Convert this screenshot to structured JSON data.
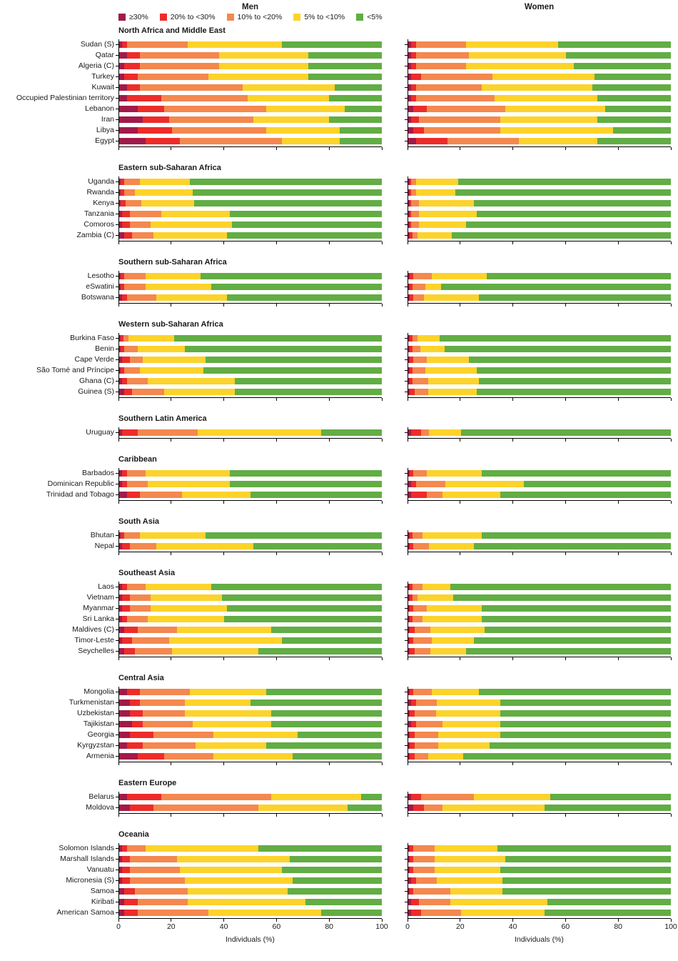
{
  "chart_data": {
    "type": "bar",
    "subtype": "stacked_100_horizontal",
    "column_headers": [
      "Men",
      "Women"
    ],
    "legend": [
      {
        "label": "≥30%",
        "color": "#a11a4a"
      },
      {
        "label": "20% to <30%",
        "color": "#ed2c2a"
      },
      {
        "label": "10% to <20%",
        "color": "#f4884f"
      },
      {
        "label": "5% to <10%",
        "color": "#fcd32b"
      },
      {
        "label": "<5%",
        "color": "#62ad44"
      }
    ],
    "xlabel": "Individuals (%)",
    "x_ticks": [
      0,
      20,
      40,
      60,
      80,
      100
    ],
    "xlim": [
      0,
      100
    ],
    "grid": false,
    "legend_position": "top-left",
    "regions": [
      {
        "name": "North Africa and Middle East",
        "countries": [
          {
            "name": "Sudan (S)",
            "men": [
              1,
              2,
              23,
              36,
              38
            ],
            "women": [
              1,
              2,
              19,
              35,
              43
            ]
          },
          {
            "name": "Qatar",
            "men": [
              3,
              5,
              30,
              34,
              28
            ],
            "women": [
              1,
              2,
              20,
              37,
              40
            ]
          },
          {
            "name": "Algeria (C)",
            "men": [
              2,
              6,
              30,
              34,
              28
            ],
            "women": [
              1,
              2,
              19,
              41,
              37
            ]
          },
          {
            "name": "Turkey",
            "men": [
              2,
              5,
              27,
              38,
              28
            ],
            "women": [
              1,
              4,
              27,
              39,
              29
            ]
          },
          {
            "name": "Kuwait",
            "men": [
              3,
              5,
              39,
              35,
              18
            ],
            "women": [
              1,
              2,
              25,
              42,
              30
            ]
          },
          {
            "name": "Occupied Palestinian territory",
            "men": [
              3,
              13,
              33,
              31,
              20
            ],
            "women": [
              1,
              2,
              30,
              39,
              28
            ]
          },
          {
            "name": "Lebanon",
            "men": [
              7,
              10,
              39,
              30,
              14
            ],
            "women": [
              2,
              5,
              30,
              38,
              25
            ]
          },
          {
            "name": "Iran",
            "men": [
              9,
              10,
              32,
              29,
              20
            ],
            "women": [
              1,
              3,
              31,
              37,
              28
            ]
          },
          {
            "name": "Libya",
            "men": [
              7,
              13,
              36,
              28,
              16
            ],
            "women": [
              2,
              4,
              29,
              43,
              22
            ]
          },
          {
            "name": "Egypt",
            "men": [
              10,
              13,
              39,
              22,
              16
            ],
            "women": [
              3,
              12,
              27,
              30,
              28
            ]
          }
        ]
      },
      {
        "name": "Eastern sub-Saharan Africa",
        "countries": [
          {
            "name": "Uganda",
            "men": [
              0.5,
              1.5,
              6,
              19,
              73
            ],
            "women": [
              0.5,
              0.5,
              2,
              16,
              81
            ]
          },
          {
            "name": "Rwanda",
            "men": [
              0.5,
              1.5,
              4,
              22,
              72
            ],
            "women": [
              0.5,
              0.5,
              2,
              15,
              82
            ]
          },
          {
            "name": "Kenya",
            "men": [
              0.5,
              2,
              6,
              20,
              71.5
            ],
            "women": [
              0.5,
              0.5,
              3,
              21,
              75
            ]
          },
          {
            "name": "Tanzania",
            "men": [
              1,
              3,
              12,
              26,
              58
            ],
            "women": [
              0.5,
              0.5,
              3,
              22,
              74
            ]
          },
          {
            "name": "Comoros",
            "men": [
              1,
              3,
              8,
              31,
              57
            ],
            "women": [
              0.5,
              0.5,
              3,
              18,
              78
            ]
          },
          {
            "name": "Zambia (C)",
            "men": [
              2,
              3,
              8,
              28,
              59
            ],
            "women": [
              0.5,
              1,
              2,
              13,
              83.5
            ]
          }
        ]
      },
      {
        "name": "Southern sub-Saharan Africa",
        "countries": [
          {
            "name": "Lesotho",
            "men": [
              0.5,
              1.5,
              8,
              21,
              69
            ],
            "women": [
              0.5,
              1.5,
              7,
              21,
              70
            ]
          },
          {
            "name": "eSwatini",
            "men": [
              0.5,
              1.5,
              8,
              25,
              65
            ],
            "women": [
              0.5,
              1,
              5,
              6,
              87.5
            ]
          },
          {
            "name": "Botswana",
            "men": [
              1,
              2,
              11,
              27,
              59
            ],
            "women": [
              0.5,
              1.5,
              4,
              21,
              73
            ]
          }
        ]
      },
      {
        "name": "Western sub-Saharan Africa",
        "countries": [
          {
            "name": "Burkina Faso",
            "men": [
              0.5,
              1,
              2,
              17.5,
              79
            ],
            "women": [
              0.5,
              1,
              2,
              8.5,
              88
            ]
          },
          {
            "name": "Benin",
            "men": [
              0.5,
              1.5,
              5,
              18,
              75
            ],
            "women": [
              0.5,
              1,
              3,
              9.5,
              86
            ]
          },
          {
            "name": "Cape Verde",
            "men": [
              1,
              3,
              5,
              24,
              67
            ],
            "women": [
              0.5,
              1.5,
              5,
              16,
              77
            ]
          },
          {
            "name": "São Tomé and Príncipe",
            "men": [
              0.5,
              1.5,
              6,
              24,
              68
            ],
            "women": [
              0.5,
              1,
              5,
              19.5,
              74
            ]
          },
          {
            "name": "Ghana (C)",
            "men": [
              1,
              2,
              8,
              33,
              56
            ],
            "women": [
              0.5,
              1,
              6,
              19.5,
              73
            ]
          },
          {
            "name": "Guinea (S)",
            "men": [
              2,
              3,
              12,
              27,
              56
            ],
            "women": [
              0.5,
              2,
              5,
              18.5,
              74
            ]
          }
        ]
      },
      {
        "name": "Southern Latin America",
        "countries": [
          {
            "name": "Uruguay",
            "men": [
              1,
              6,
              23,
              47,
              23
            ],
            "women": [
              1,
              4,
              3,
              12,
              80
            ]
          }
        ]
      },
      {
        "name": "Caribbean",
        "countries": [
          {
            "name": "Barbados",
            "men": [
              1,
              2,
              7,
              32,
              58
            ],
            "women": [
              0.5,
              1.5,
              5,
              21,
              72
            ]
          },
          {
            "name": "Dominican Republic",
            "men": [
              1,
              2,
              8,
              31,
              58
            ],
            "women": [
              1,
              2,
              11,
              30,
              56
            ]
          },
          {
            "name": "Trinidad and Tobago",
            "men": [
              3,
              5,
              16,
              26,
              50
            ],
            "women": [
              1,
              6,
              6,
              22,
              65
            ]
          }
        ]
      },
      {
        "name": "South Asia",
        "countries": [
          {
            "name": "Bhutan",
            "men": [
              0.5,
              1.5,
              6,
              25,
              67
            ],
            "women": [
              0.5,
              1,
              4,
              22.5,
              72
            ]
          },
          {
            "name": "Nepal",
            "men": [
              1,
              3,
              10,
              37,
              49
            ],
            "women": [
              0.5,
              1.5,
              6,
              17,
              75
            ]
          }
        ]
      },
      {
        "name": "Southeast Asia",
        "countries": [
          {
            "name": "Laos",
            "men": [
              1,
              2,
              7,
              25,
              65
            ],
            "women": [
              0.5,
              1,
              4,
              10.5,
              84
            ]
          },
          {
            "name": "Vietnam",
            "men": [
              1,
              3,
              8,
              27,
              61
            ],
            "women": [
              0.5,
              1,
              2,
              13.5,
              83
            ]
          },
          {
            "name": "Myanmar",
            "men": [
              1,
              3,
              8,
              29,
              59
            ],
            "women": [
              0.5,
              1.5,
              5,
              21,
              72
            ]
          },
          {
            "name": "Sri Lanka",
            "men": [
              1,
              2,
              8,
              29,
              60
            ],
            "women": [
              0.5,
              1,
              4,
              22.5,
              72
            ]
          },
          {
            "name": "Maldives (C)",
            "men": [
              2,
              5,
              15,
              36,
              42
            ],
            "women": [
              0.5,
              2,
              6,
              20.5,
              71
            ]
          },
          {
            "name": "Timor-Leste",
            "men": [
              1,
              4,
              14,
              43,
              38
            ],
            "women": [
              0.5,
              1.5,
              7,
              16,
              75
            ]
          },
          {
            "name": "Seychelles",
            "men": [
              2,
              4,
              14,
              33,
              47
            ],
            "women": [
              0.5,
              2,
              6,
              13.5,
              78
            ]
          }
        ]
      },
      {
        "name": "Central Asia",
        "countries": [
          {
            "name": "Mongolia",
            "men": [
              3,
              5,
              19,
              29,
              44
            ],
            "women": [
              0.5,
              1.5,
              7,
              18,
              73
            ]
          },
          {
            "name": "Turkmenistan",
            "men": [
              4,
              4,
              17,
              25,
              50
            ],
            "women": [
              1,
              2,
              8,
              24,
              65
            ]
          },
          {
            "name": "Uzbekistan",
            "men": [
              4,
              5,
              16,
              33,
              42
            ],
            "women": [
              0.5,
              2,
              8,
              24.5,
              65
            ]
          },
          {
            "name": "Tajikistan",
            "men": [
              5,
              4,
              19,
              30,
              42
            ],
            "women": [
              1,
              2,
              10,
              22,
              65
            ]
          },
          {
            "name": "Georgia",
            "men": [
              4,
              9,
              23,
              32,
              32
            ],
            "women": [
              0.5,
              2,
              9,
              23.5,
              65
            ]
          },
          {
            "name": "Kyrgyzstan",
            "men": [
              3,
              6,
              20,
              27,
              44
            ],
            "women": [
              0.5,
              2,
              9,
              19.5,
              69
            ]
          },
          {
            "name": "Armenia",
            "men": [
              7,
              10,
              19,
              30,
              34
            ],
            "women": [
              0.5,
              2,
              5,
              13.5,
              79
            ]
          }
        ]
      },
      {
        "name": "Eastern Europe",
        "countries": [
          {
            "name": "Belarus",
            "men": [
              3,
              13,
              42,
              34,
              8
            ],
            "women": [
              1,
              4,
              20,
              29,
              46
            ]
          },
          {
            "name": "Moldova",
            "men": [
              4,
              9,
              40,
              34,
              13
            ],
            "women": [
              2,
              4,
              7,
              39,
              48
            ]
          }
        ]
      },
      {
        "name": "Oceania",
        "countries": [
          {
            "name": "Solomon Islands",
            "men": [
              1,
              2,
              7,
              43,
              47
            ],
            "women": [
              0.5,
              1.5,
              8,
              24,
              66
            ]
          },
          {
            "name": "Marshall Islands",
            "men": [
              1,
              3,
              18,
              43,
              35
            ],
            "women": [
              0.5,
              1.5,
              8,
              27,
              63
            ]
          },
          {
            "name": "Vanuatu",
            "men": [
              1,
              3,
              19,
              39,
              38
            ],
            "women": [
              0.5,
              1.5,
              8,
              25,
              65
            ]
          },
          {
            "name": "Micronesia (S)",
            "men": [
              1,
              3,
              21,
              41,
              34
            ],
            "women": [
              1,
              2,
              8,
              25,
              64
            ]
          },
          {
            "name": "Samoa",
            "men": [
              2,
              4,
              20,
              38,
              36
            ],
            "women": [
              0.5,
              1.5,
              14,
              20,
              64
            ]
          },
          {
            "name": "Kiribati",
            "men": [
              2,
              5,
              19,
              45,
              29
            ],
            "women": [
              1,
              3,
              12,
              37,
              47
            ]
          },
          {
            "name": "American Samoa",
            "men": [
              2,
              5,
              27,
              43,
              23
            ],
            "women": [
              1,
              4,
              15,
              32,
              48
            ]
          }
        ]
      }
    ]
  }
}
